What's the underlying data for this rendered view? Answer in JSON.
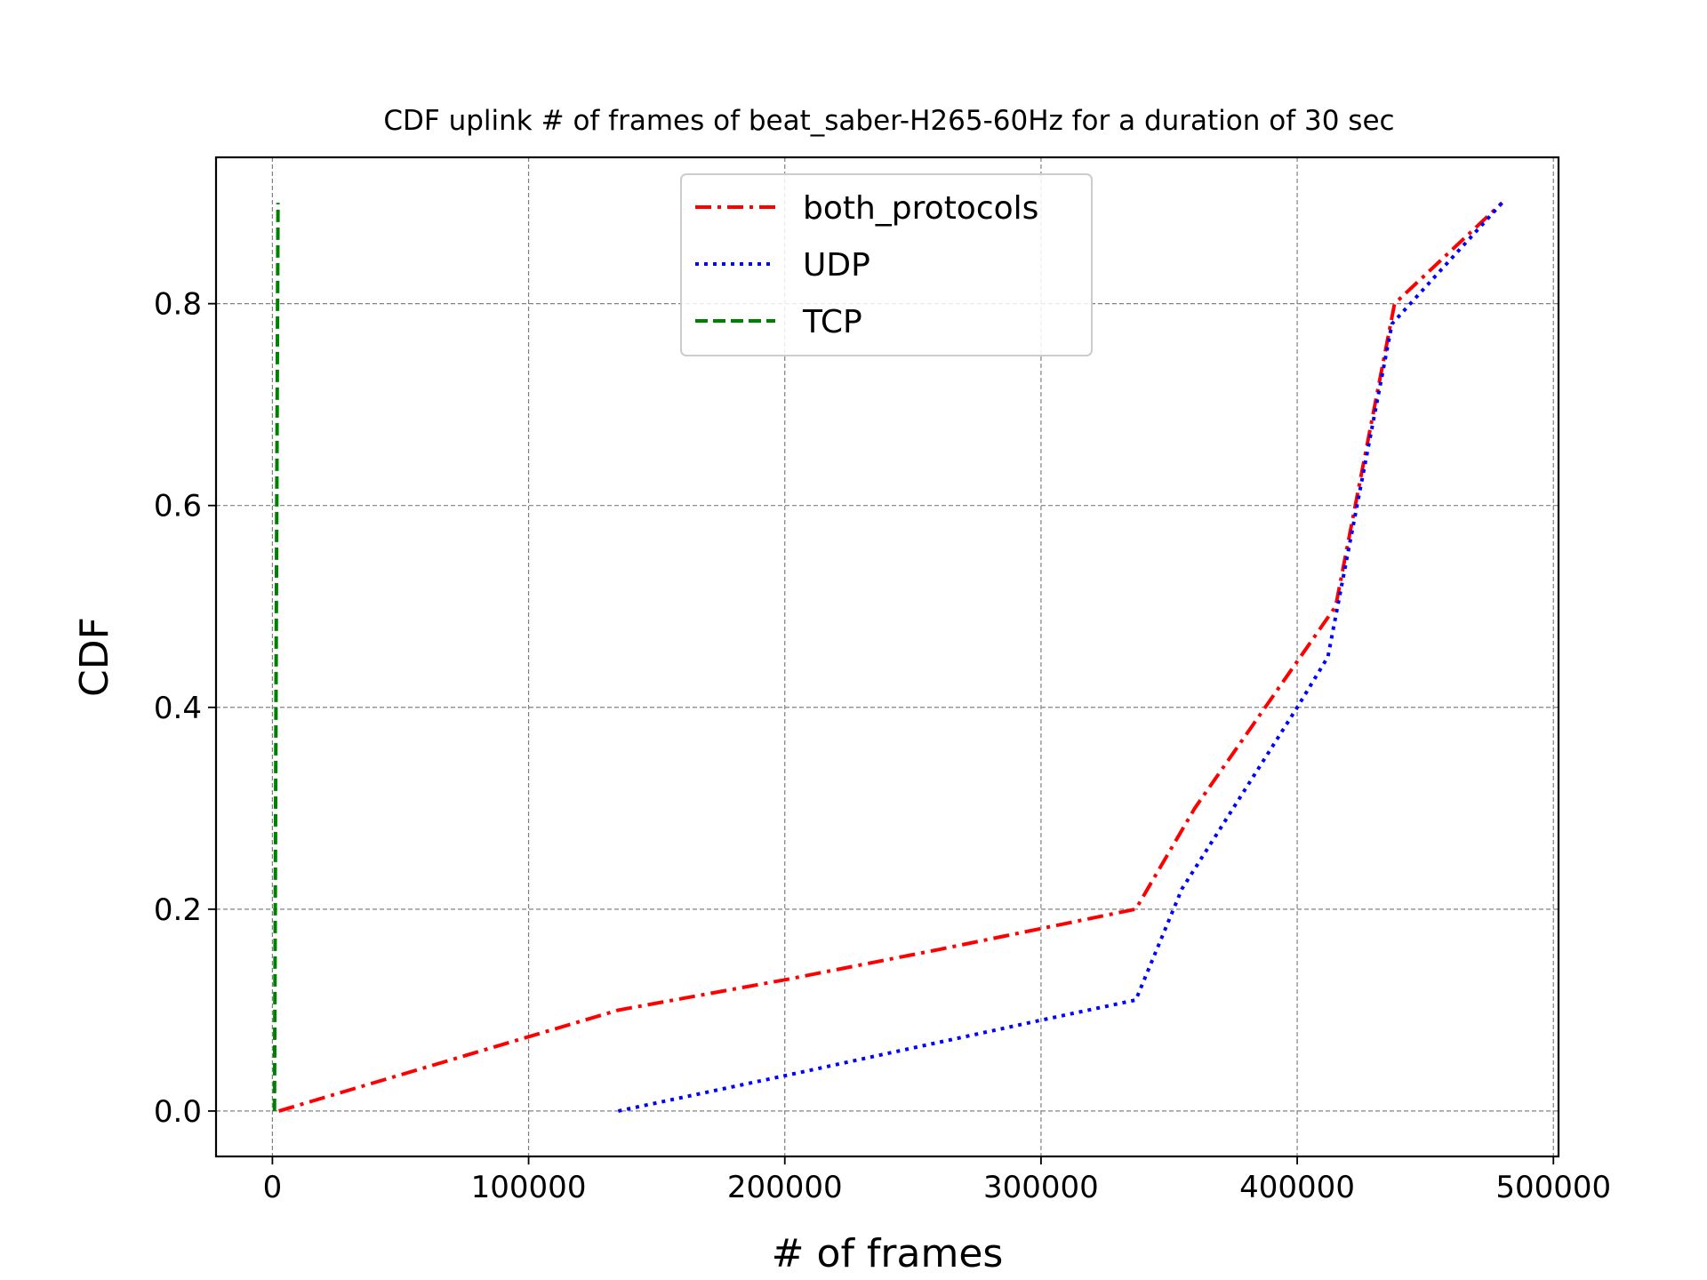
{
  "chart_data": {
    "type": "line",
    "title": "CDF uplink # of frames of beat_saber-H265-60Hz for a duration of 30 sec",
    "xlabel": "# of frames",
    "ylabel": "CDF",
    "xlim": [
      -22000,
      502000
    ],
    "ylim": [
      -0.045,
      0.945
    ],
    "xticks": [
      0,
      100000,
      200000,
      300000,
      400000,
      500000
    ],
    "xtick_labels": [
      "0",
      "100000",
      "200000",
      "300000",
      "400000",
      "500000"
    ],
    "yticks": [
      0.0,
      0.2,
      0.4,
      0.6,
      0.8
    ],
    "ytick_labels": [
      "0.0",
      "0.2",
      "0.4",
      "0.6",
      "0.8"
    ],
    "grid": true,
    "legend_position": "top-center",
    "series": [
      {
        "name": "both_protocols",
        "color": "#ff0000",
        "line_style": "dashdot",
        "x": [
          2500,
          135000,
          200000,
          260000,
          337000,
          360000,
          415000,
          438000,
          480000
        ],
        "y": [
          0.0,
          0.1,
          0.13,
          0.16,
          0.2,
          0.3,
          0.5,
          0.8,
          0.9
        ]
      },
      {
        "name": "UDP",
        "color": "#0000ff",
        "line_style": "dotted",
        "x": [
          135000,
          200000,
          300000,
          337000,
          355000,
          400000,
          412000,
          437000,
          480000
        ],
        "y": [
          0.0,
          0.035,
          0.09,
          0.11,
          0.22,
          0.4,
          0.45,
          0.78,
          0.9
        ]
      },
      {
        "name": "TCP",
        "color": "#008000",
        "line_style": "dashed",
        "x": [
          800,
          1100,
          1400,
          1700,
          2000,
          2200
        ],
        "y": [
          0.0,
          0.2,
          0.4,
          0.6,
          0.8,
          0.9
        ]
      }
    ]
  }
}
